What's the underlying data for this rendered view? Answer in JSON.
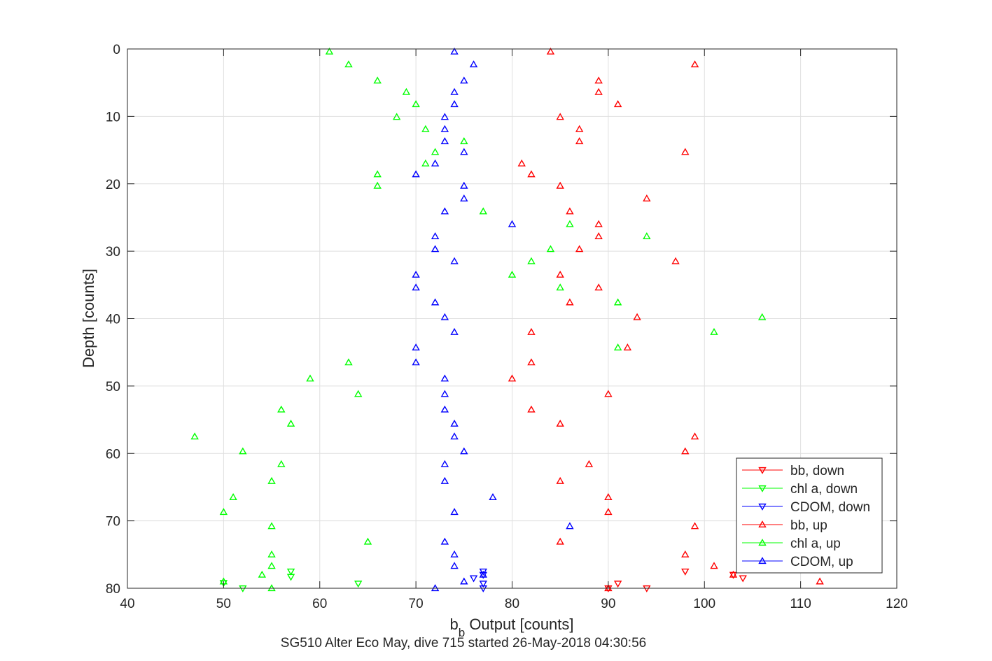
{
  "chart_data": {
    "type": "scatter",
    "xlabel_main": "b",
    "xlabel_sub": "b",
    "xlabel_rest": " Output [counts]",
    "ylabel": "Depth [counts]",
    "subtitle": "SG510 Alter Eco May, dive 715 started 26-May-2018 04:30:56",
    "xlim": [
      40,
      120
    ],
    "ylim": [
      0,
      80
    ],
    "y_reversed": true,
    "grid": true,
    "legend_position": "bottom-right",
    "x_ticks": [
      40,
      50,
      60,
      70,
      80,
      90,
      100,
      110,
      120
    ],
    "y_ticks": [
      0,
      10,
      20,
      30,
      40,
      50,
      60,
      70,
      80
    ],
    "series": [
      {
        "name": "bb, down",
        "color": "#ff0000",
        "marker": "triangle-down",
        "points": [
          [
            98,
            77.5
          ],
          [
            103,
            78
          ],
          [
            104,
            78.5
          ],
          [
            91,
            79.3
          ],
          [
            90,
            80
          ],
          [
            94,
            80
          ]
        ]
      },
      {
        "name": "chl a, down",
        "color": "#00ff00",
        "marker": "triangle-down",
        "points": [
          [
            57,
            77.5
          ],
          [
            57,
            78.3
          ],
          [
            50,
            79.2
          ],
          [
            64,
            79.3
          ],
          [
            52,
            80
          ]
        ]
      },
      {
        "name": "CDOM, down",
        "color": "#0000ff",
        "marker": "triangle-down",
        "points": [
          [
            77,
            77.5
          ],
          [
            77,
            78
          ],
          [
            76,
            78.5
          ],
          [
            77,
            79.3
          ],
          [
            77,
            80
          ]
        ]
      },
      {
        "name": "bb, up",
        "color": "#ff0000",
        "marker": "triangle-up",
        "points": [
          [
            84,
            0.4
          ],
          [
            99,
            2.3
          ],
          [
            89,
            4.7
          ],
          [
            89,
            6.4
          ],
          [
            91,
            8.2
          ],
          [
            85,
            10.1
          ],
          [
            87,
            11.9
          ],
          [
            87,
            13.7
          ],
          [
            98,
            15.3
          ],
          [
            81,
            17.0
          ],
          [
            82,
            18.6
          ],
          [
            85,
            20.3
          ],
          [
            94,
            22.2
          ],
          [
            86,
            24.1
          ],
          [
            89,
            26.0
          ],
          [
            89,
            27.8
          ],
          [
            87,
            29.7
          ],
          [
            97,
            31.5
          ],
          [
            85,
            33.5
          ],
          [
            89,
            35.4
          ],
          [
            86,
            37.6
          ],
          [
            93,
            39.8
          ],
          [
            82,
            42.0
          ],
          [
            92,
            44.3
          ],
          [
            82,
            46.5
          ],
          [
            80,
            48.9
          ],
          [
            90,
            51.2
          ],
          [
            82,
            53.5
          ],
          [
            85,
            55.6
          ],
          [
            99,
            57.5
          ],
          [
            98,
            59.7
          ],
          [
            88,
            61.6
          ],
          [
            85,
            64.1
          ],
          [
            90,
            66.5
          ],
          [
            90,
            68.7
          ],
          [
            99,
            70.8
          ],
          [
            85,
            73.1
          ],
          [
            98,
            75.0
          ],
          [
            101,
            76.7
          ],
          [
            103,
            78.0
          ],
          [
            112,
            79.0
          ],
          [
            90,
            80.0
          ]
        ]
      },
      {
        "name": "chl a, up",
        "color": "#00ff00",
        "marker": "triangle-up",
        "points": [
          [
            61,
            0.4
          ],
          [
            63,
            2.3
          ],
          [
            66,
            4.7
          ],
          [
            69,
            6.4
          ],
          [
            70,
            8.2
          ],
          [
            68,
            10.1
          ],
          [
            71,
            11.9
          ],
          [
            75,
            13.7
          ],
          [
            72,
            15.3
          ],
          [
            71,
            17.0
          ],
          [
            66,
            18.6
          ],
          [
            66,
            20.3
          ],
          [
            77,
            24.1
          ],
          [
            86,
            26.0
          ],
          [
            94,
            27.8
          ],
          [
            84,
            29.7
          ],
          [
            82,
            31.5
          ],
          [
            80,
            33.5
          ],
          [
            85,
            35.4
          ],
          [
            91,
            37.6
          ],
          [
            106,
            39.8
          ],
          [
            101,
            42.0
          ],
          [
            91,
            44.3
          ],
          [
            63,
            46.5
          ],
          [
            59,
            48.9
          ],
          [
            64,
            51.2
          ],
          [
            56,
            53.5
          ],
          [
            57,
            55.6
          ],
          [
            47,
            57.5
          ],
          [
            52,
            59.7
          ],
          [
            56,
            61.6
          ],
          [
            55,
            64.1
          ],
          [
            51,
            66.5
          ],
          [
            50,
            68.7
          ],
          [
            55,
            70.8
          ],
          [
            65,
            73.1
          ],
          [
            55,
            75.0
          ],
          [
            55,
            76.7
          ],
          [
            54,
            78.0
          ],
          [
            50,
            79.0
          ],
          [
            55,
            80.0
          ]
        ]
      },
      {
        "name": "CDOM, up",
        "color": "#0000ff",
        "marker": "triangle-up",
        "points": [
          [
            74,
            0.4
          ],
          [
            76,
            2.3
          ],
          [
            75,
            4.7
          ],
          [
            74,
            6.4
          ],
          [
            74,
            8.2
          ],
          [
            73,
            10.1
          ],
          [
            73,
            11.9
          ],
          [
            73,
            13.7
          ],
          [
            75,
            15.3
          ],
          [
            72,
            17.0
          ],
          [
            70,
            18.6
          ],
          [
            75,
            20.3
          ],
          [
            75,
            22.2
          ],
          [
            73,
            24.1
          ],
          [
            80,
            26.0
          ],
          [
            72,
            27.8
          ],
          [
            72,
            29.7
          ],
          [
            74,
            31.5
          ],
          [
            70,
            33.5
          ],
          [
            70,
            35.4
          ],
          [
            72,
            37.6
          ],
          [
            73,
            39.8
          ],
          [
            74,
            42.0
          ],
          [
            70,
            44.3
          ],
          [
            70,
            46.5
          ],
          [
            73,
            48.9
          ],
          [
            73,
            51.2
          ],
          [
            73,
            53.5
          ],
          [
            74,
            55.6
          ],
          [
            74,
            57.5
          ],
          [
            75,
            59.7
          ],
          [
            73,
            61.6
          ],
          [
            73,
            64.1
          ],
          [
            78,
            66.5
          ],
          [
            74,
            68.7
          ],
          [
            86,
            70.8
          ],
          [
            73,
            73.1
          ],
          [
            74,
            75.0
          ],
          [
            74,
            76.7
          ],
          [
            77,
            78.0
          ],
          [
            75,
            79.0
          ],
          [
            72,
            80.0
          ]
        ]
      }
    ]
  }
}
